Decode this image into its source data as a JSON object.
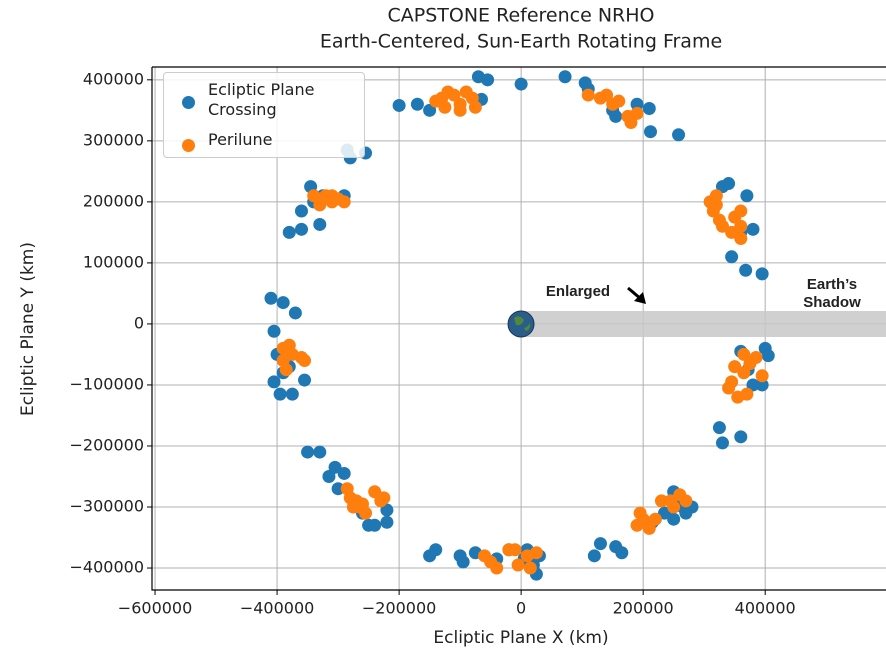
{
  "chart_data": {
    "type": "scatter",
    "title": "CAPSTONE Reference NRHO",
    "subtitle": "Earth-Centered, Sun-Earth Rotating Frame",
    "xlabel": "Ecliptic Plane X (km)",
    "ylabel": "Ecliptic Plane Y (km)",
    "xlim": [
      -605000,
      598000
    ],
    "ylim": [
      -436000,
      421000
    ],
    "xticks": [
      {
        "value": -600000,
        "label": "−600000"
      },
      {
        "value": -400000,
        "label": "−400000"
      },
      {
        "value": -200000,
        "label": "−200000"
      },
      0,
      200000,
      400000
    ],
    "yticks": [
      {
        "value": -400000,
        "label": "−400000"
      },
      {
        "value": -300000,
        "label": "−300000"
      },
      {
        "value": -200000,
        "label": "−200000"
      },
      {
        "value": -100000,
        "label": "−100000"
      },
      0,
      100000,
      200000,
      300000,
      400000
    ],
    "grid": true,
    "legend": "upper left",
    "annotations": [
      "Enlarged",
      "Earth’s",
      "Shadow"
    ],
    "series": [
      {
        "name": "Ecliptic Plane Crossing",
        "color": "#1f77b4",
        "x": [
          -70000,
          -55000,
          0,
          72000,
          105000,
          110000,
          150000,
          155000,
          190000,
          210000,
          212000,
          258000,
          -65000,
          -200000,
          -170000,
          -150000,
          -285000,
          -280000,
          -255000,
          -345000,
          -325000,
          -340000,
          -290000,
          -360000,
          -360000,
          -380000,
          -330000,
          310000,
          330000,
          340000,
          370000,
          380000,
          360000,
          345000,
          368000,
          395000,
          -410000,
          -390000,
          -370000,
          -405000,
          -400000,
          -390000,
          -405000,
          -395000,
          -375000,
          -355000,
          -380000,
          360000,
          400000,
          405000,
          372000,
          395000,
          380000,
          325000,
          330000,
          360000,
          -350000,
          -330000,
          -305000,
          -315000,
          -290000,
          -260000,
          -250000,
          -240000,
          -220000,
          -220000,
          -300000,
          -150000,
          -140000,
          -100000,
          -95000,
          -75000,
          -40000,
          -20000,
          5000,
          10000,
          20000,
          30000,
          25000,
          120000,
          130000,
          155000,
          165000,
          215000,
          235000,
          250000,
          250000,
          260000,
          265000,
          280000,
          270000
        ],
        "y": [
          405000,
          400000,
          393000,
          405000,
          395000,
          385000,
          350000,
          340000,
          360000,
          353000,
          315000,
          310000,
          368000,
          358000,
          360000,
          350000,
          285000,
          272000,
          280000,
          225000,
          210000,
          200000,
          210000,
          185000,
          155000,
          150000,
          163000,
          200000,
          225000,
          230000,
          210000,
          155000,
          150000,
          110000,
          88000,
          82000,
          42000,
          35000,
          18000,
          -12000,
          -50000,
          -80000,
          -95000,
          -115000,
          -115000,
          -92000,
          -70000,
          -45000,
          -40000,
          -52000,
          -75000,
          -100000,
          -100000,
          -170000,
          -195000,
          -185000,
          -210000,
          -210000,
          -235000,
          -250000,
          -245000,
          -310000,
          -330000,
          -330000,
          -305000,
          -325000,
          -270000,
          -380000,
          -370000,
          -380000,
          -390000,
          -375000,
          -385000,
          -370000,
          -385000,
          -370000,
          -395000,
          -380000,
          -410000,
          -380000,
          -360000,
          -365000,
          -375000,
          -325000,
          -310000,
          -320000,
          -275000,
          -295000,
          -300000,
          -300000,
          -310000
        ]
      },
      {
        "name": "Perilune",
        "color": "#ff7f0e",
        "x": [
          -140000,
          -130000,
          -125000,
          -110000,
          -100000,
          -90000,
          -80000,
          -100000,
          -75000,
          110000,
          130000,
          140000,
          150000,
          160000,
          175000,
          180000,
          190000,
          -120000,
          -340000,
          -330000,
          -320000,
          -310000,
          -300000,
          -290000,
          -330000,
          -310000,
          310000,
          320000,
          315000,
          325000,
          330000,
          345000,
          360000,
          360000,
          350000,
          360000,
          320000,
          -390000,
          -380000,
          -375000,
          -390000,
          -360000,
          -355000,
          -385000,
          365000,
          385000,
          375000,
          350000,
          365000,
          395000,
          345000,
          340000,
          355000,
          370000,
          -285000,
          -280000,
          -270000,
          -260000,
          -265000,
          -240000,
          -225000,
          -230000,
          -275000,
          -255000,
          -60000,
          -50000,
          -40000,
          -20000,
          -10000,
          10000,
          25000,
          -5000,
          15000,
          190000,
          200000,
          195000,
          220000,
          230000,
          245000,
          260000,
          270000,
          210000,
          250000
        ],
        "y": [
          365000,
          370000,
          355000,
          375000,
          360000,
          380000,
          370000,
          350000,
          355000,
          375000,
          370000,
          375000,
          360000,
          365000,
          340000,
          330000,
          345000,
          380000,
          210000,
          205000,
          210000,
          200000,
          205000,
          200000,
          195000,
          210000,
          200000,
          195000,
          185000,
          170000,
          160000,
          150000,
          140000,
          160000,
          175000,
          185000,
          210000,
          -40000,
          -35000,
          -50000,
          -60000,
          -55000,
          -60000,
          -75000,
          -50000,
          -55000,
          -65000,
          -70000,
          -80000,
          -85000,
          -95000,
          -105000,
          -120000,
          -115000,
          -270000,
          -285000,
          -290000,
          -295000,
          -300000,
          -275000,
          -285000,
          -290000,
          -300000,
          -310000,
          -380000,
          -390000,
          -400000,
          -370000,
          -370000,
          -380000,
          -375000,
          -395000,
          -400000,
          -330000,
          -320000,
          -310000,
          -320000,
          -290000,
          -290000,
          -280000,
          -290000,
          -335000,
          -300000
        ]
      }
    ]
  }
}
